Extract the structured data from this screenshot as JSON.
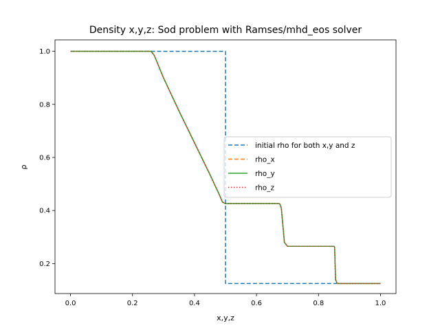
{
  "chart_data": {
    "type": "line",
    "title": "Density x,y,z: Sod problem with Ramses/mhd_eos solver",
    "xlabel": "x,y,z",
    "ylabel": "ρ",
    "xlim": [
      -0.05,
      1.05
    ],
    "ylim": [
      0.087,
      1.043
    ],
    "xticks": [
      0.0,
      0.2,
      0.4,
      0.6,
      0.8,
      1.0
    ],
    "xtick_labels": [
      "0.0",
      "0.2",
      "0.4",
      "0.6",
      "0.8",
      "1.0"
    ],
    "yticks": [
      0.2,
      0.4,
      0.6,
      0.8,
      1.0
    ],
    "ytick_labels": [
      "0.2",
      "0.4",
      "0.6",
      "0.8",
      "1.0"
    ],
    "grid": false,
    "legend_position": "center-right",
    "series": [
      {
        "name": "initial rho for both x,y and z",
        "color": "#1f77b4",
        "style": "dashed",
        "x": [
          0.0,
          0.5,
          0.5,
          1.0
        ],
        "y": [
          1.0,
          1.0,
          0.125,
          0.125
        ]
      },
      {
        "name": "rho_x",
        "color": "#ff7f0e",
        "style": "dashed",
        "x": [
          0.0,
          0.26,
          0.27,
          0.3,
          0.35,
          0.4,
          0.45,
          0.48,
          0.49,
          0.5,
          0.67,
          0.675,
          0.68,
          0.69,
          0.7,
          0.85,
          0.852,
          0.855,
          0.86,
          1.0
        ],
        "y": [
          1.0,
          1.0,
          0.985,
          0.9,
          0.775,
          0.655,
          0.535,
          0.46,
          0.432,
          0.426,
          0.426,
          0.425,
          0.41,
          0.28,
          0.265,
          0.265,
          0.262,
          0.14,
          0.125,
          0.125
        ]
      },
      {
        "name": "rho_y",
        "color": "#2ca02c",
        "style": "solid",
        "x": [
          0.0,
          0.26,
          0.27,
          0.3,
          0.35,
          0.4,
          0.45,
          0.48,
          0.49,
          0.5,
          0.67,
          0.675,
          0.68,
          0.69,
          0.7,
          0.85,
          0.852,
          0.855,
          0.86,
          1.0
        ],
        "y": [
          1.0,
          1.0,
          0.985,
          0.9,
          0.775,
          0.655,
          0.535,
          0.46,
          0.432,
          0.426,
          0.426,
          0.425,
          0.41,
          0.28,
          0.265,
          0.265,
          0.262,
          0.14,
          0.125,
          0.125
        ]
      },
      {
        "name": "rho_z",
        "color": "#d62728",
        "style": "dotted",
        "x": [
          0.0,
          0.26,
          0.27,
          0.3,
          0.35,
          0.4,
          0.45,
          0.48,
          0.49,
          0.5,
          0.67,
          0.675,
          0.68,
          0.69,
          0.7,
          0.85,
          0.852,
          0.855,
          0.86,
          1.0
        ],
        "y": [
          1.0,
          1.0,
          0.985,
          0.9,
          0.775,
          0.655,
          0.535,
          0.46,
          0.432,
          0.426,
          0.426,
          0.425,
          0.41,
          0.28,
          0.265,
          0.265,
          0.262,
          0.14,
          0.125,
          0.125
        ]
      }
    ]
  }
}
